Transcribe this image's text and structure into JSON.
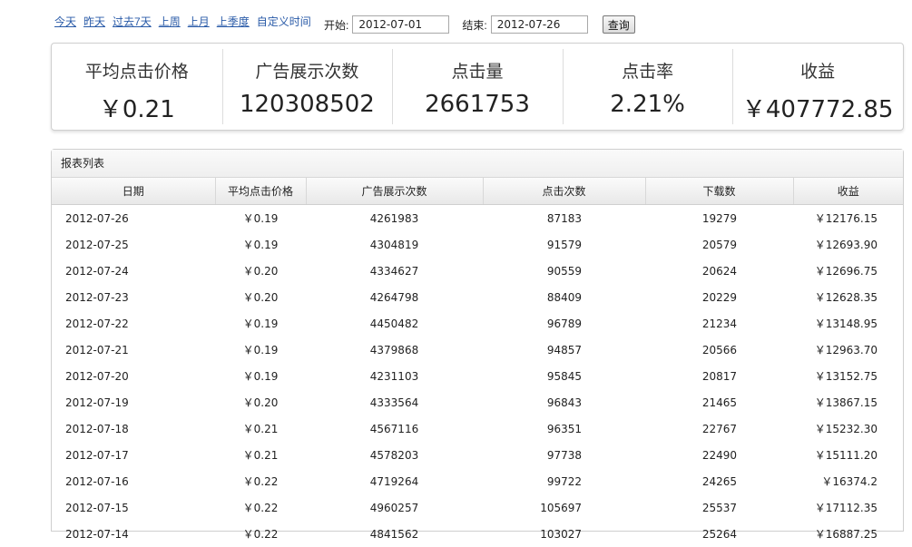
{
  "quick_links": [
    "今天",
    "昨天",
    "过去7天",
    "上周",
    "上月",
    "上季度"
  ],
  "custom_link": "自定义时间",
  "range": {
    "start_label": "开始:",
    "start_value": "2012-07-01",
    "end_label": "结束:",
    "end_value": "2012-07-26",
    "query_label": "查询"
  },
  "summary": [
    {
      "label": "平均点击价格",
      "value": "￥0.21"
    },
    {
      "label": "广告展示次数",
      "value": "120308502"
    },
    {
      "label": "点击量",
      "value": "2661753"
    },
    {
      "label": "点击率",
      "value": "2.21%"
    },
    {
      "label": "收益",
      "value": "￥407772.85"
    }
  ],
  "report": {
    "title": "报表列表",
    "columns": [
      "日期",
      "平均点击价格",
      "广告展示次数",
      "点击次数",
      "下载数",
      "收益"
    ],
    "rows": [
      [
        "2012-07-26",
        "￥0.19",
        "4261983",
        "87183",
        "19279",
        "￥12176.15"
      ],
      [
        "2012-07-25",
        "￥0.19",
        "4304819",
        "91579",
        "20579",
        "￥12693.90"
      ],
      [
        "2012-07-24",
        "￥0.20",
        "4334627",
        "90559",
        "20624",
        "￥12696.75"
      ],
      [
        "2012-07-23",
        "￥0.20",
        "4264798",
        "88409",
        "20229",
        "￥12628.35"
      ],
      [
        "2012-07-22",
        "￥0.19",
        "4450482",
        "96789",
        "21234",
        "￥13148.95"
      ],
      [
        "2012-07-21",
        "￥0.19",
        "4379868",
        "94857",
        "20566",
        "￥12963.70"
      ],
      [
        "2012-07-20",
        "￥0.19",
        "4231103",
        "95845",
        "20817",
        "￥13152.75"
      ],
      [
        "2012-07-19",
        "￥0.20",
        "4333564",
        "96843",
        "21465",
        "￥13867.15"
      ],
      [
        "2012-07-18",
        "￥0.21",
        "4567116",
        "96351",
        "22767",
        "￥15232.30"
      ],
      [
        "2012-07-17",
        "￥0.21",
        "4578203",
        "97738",
        "22490",
        "￥15111.20"
      ],
      [
        "2012-07-16",
        "￥0.22",
        "4719264",
        "99722",
        "24265",
        "￥16374.2"
      ],
      [
        "2012-07-15",
        "￥0.22",
        "4960257",
        "105697",
        "25537",
        "￥17112.35"
      ],
      [
        "2012-07-14",
        "￥0.22",
        "4841562",
        "103027",
        "25264",
        "￥16887.25"
      ]
    ]
  }
}
